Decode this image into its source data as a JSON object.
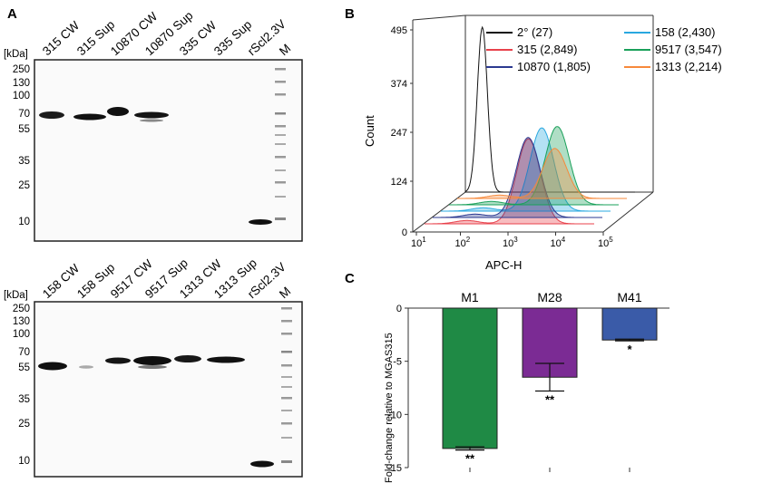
{
  "panels": {
    "a_label": "A",
    "b_label": "B",
    "c_label": "C"
  },
  "blot_top": {
    "kda_label": "[kDa]",
    "lanes": [
      "315 CW",
      "315 Sup",
      "10870 CW",
      "10870 Sup",
      "335 CW",
      "335 Sup",
      "rScl2.3V",
      "M"
    ],
    "markers": [
      "250",
      "130",
      "100",
      "70",
      "55",
      "35",
      "25",
      "10"
    ]
  },
  "blot_bottom": {
    "kda_label": "[kDa]",
    "lanes": [
      "158 CW",
      "158 Sup",
      "9517 CW",
      "9517 Sup",
      "1313 CW",
      "1313 Sup",
      "rScl2.3V",
      "M"
    ],
    "markers": [
      "250",
      "130",
      "100",
      "70",
      "55",
      "35",
      "25",
      "10"
    ]
  },
  "colors": {
    "black": "#111111",
    "red": "#e8414b",
    "navy": "#2b3990",
    "cyan": "#29a8e0",
    "green": "#1aa05a",
    "orange": "#f7893b",
    "bar_m1": "#1f8a45",
    "bar_m28": "#7b2b94",
    "bar_m41": "#3a5ba8"
  },
  "chart_data": [
    {
      "type": "histogram",
      "title": "",
      "xlabel": "APC-H",
      "ylabel": "Count",
      "x_scale": "log",
      "x_ticks": [
        "10^1",
        "10^2",
        "10^3",
        "10^4",
        "10^5"
      ],
      "y_ticks": [
        "0",
        "124",
        "247",
        "374",
        "495"
      ],
      "ylim": [
        0,
        495
      ],
      "series": [
        {
          "name": "2° (27)",
          "label": "2°",
          "mfi": 27,
          "mfi_text": "(27)",
          "color_key": "black",
          "peak_log10": 1.4,
          "peak_count": 495
        },
        {
          "name": "315 (2,849)",
          "label": "315",
          "mfi": 2849,
          "mfi_text": "(2,849)",
          "color_key": "red",
          "peak_log10": 3.45,
          "peak_count": 255
        },
        {
          "name": "10870 (1,805)",
          "label": "10870",
          "mfi": 1805,
          "mfi_text": "(1,805)",
          "color_key": "navy",
          "peak_log10": 3.25,
          "peak_count": 240
        },
        {
          "name": "158 (2,430)",
          "label": "158",
          "mfi": 2430,
          "mfi_text": "(2,430)",
          "color_key": "cyan",
          "peak_log10": 3.38,
          "peak_count": 250
        },
        {
          "name": "9517 (3,547)",
          "label": "9517",
          "mfi": 3547,
          "mfi_text": "(3,547)",
          "color_key": "green",
          "peak_log10": 3.55,
          "peak_count": 235
        },
        {
          "name": "1313 (2,214)",
          "label": "1313",
          "mfi": 2214,
          "mfi_text": "(2,214)",
          "color_key": "orange",
          "peak_log10": 3.3,
          "peak_count": 150
        }
      ]
    },
    {
      "type": "bar",
      "title": "",
      "xlabel": "",
      "ylabel": "Fold-change relative to MGAS315",
      "categories": [
        "M1",
        "M28",
        "M41"
      ],
      "values": [
        -13.2,
        -6.5,
        -3.0
      ],
      "errors": [
        0.15,
        1.3,
        0.08
      ],
      "significance": [
        "**",
        "**",
        "*"
      ],
      "color_keys": [
        "bar_m1",
        "bar_m28",
        "bar_m41"
      ],
      "ylim": [
        -15,
        0
      ],
      "y_ticks": [
        "0",
        "-5",
        "-10",
        "-15"
      ]
    }
  ]
}
